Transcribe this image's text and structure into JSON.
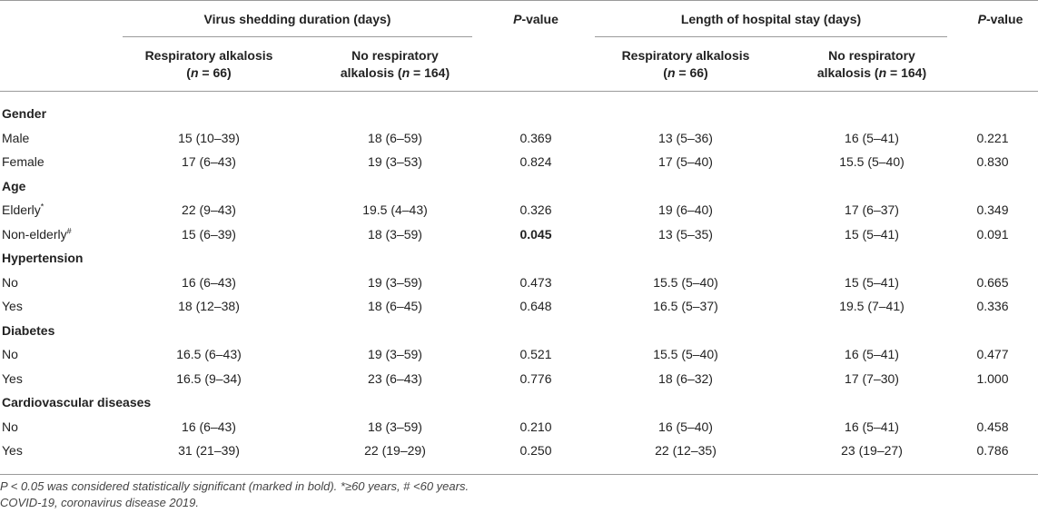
{
  "header": {
    "group1": "Virus shedding duration (days)",
    "group2": "Length of hospital stay (days)",
    "pvalue_p": "P",
    "pvalue_rest": "-value",
    "col_ra_line1": "Respiratory alkalosis",
    "col_ra_n_pre": "(",
    "col_ra_n_var": "n",
    "col_ra_n_post": " = 66)",
    "col_nra_line1": "No respiratory",
    "col_nra_line2_pre": "alkalosis (",
    "col_nra_n_var": "n",
    "col_nra_n_post": " = 164)"
  },
  "groups": [
    {
      "name": "Gender",
      "rows": [
        {
          "label": "Male",
          "sup": "",
          "v1": "15 (10–39)",
          "v2": "18 (6–59)",
          "p1": "0.369",
          "h1": "13 (5–36)",
          "h2": "16 (5–41)",
          "p2": "0.221"
        },
        {
          "label": "Female",
          "sup": "",
          "v1": "17 (6–43)",
          "v2": "19 (3–53)",
          "p1": "0.824",
          "h1": "17 (5–40)",
          "h2": "15.5 (5–40)",
          "p2": "0.830"
        }
      ]
    },
    {
      "name": "Age",
      "rows": [
        {
          "label": "Elderly",
          "sup": "*",
          "v1": "22 (9–43)",
          "v2": "19.5 (4–43)",
          "p1": "0.326",
          "h1": "19 (6–40)",
          "h2": "17 (6–37)",
          "p2": "0.349"
        },
        {
          "label": "Non-elderly",
          "sup": "#",
          "v1": "15 (6–39)",
          "v2": "18 (3–59)",
          "p1": "0.045",
          "p1_bold": true,
          "h1": "13 (5–35)",
          "h2": "15 (5–41)",
          "p2": "0.091"
        }
      ]
    },
    {
      "name": "Hypertension",
      "rows": [
        {
          "label": "No",
          "sup": "",
          "v1": "16 (6–43)",
          "v2": "19 (3–59)",
          "p1": "0.473",
          "h1": "15.5 (5–40)",
          "h2": "15 (5–41)",
          "p2": "0.665"
        },
        {
          "label": "Yes",
          "sup": "",
          "v1": "18 (12–38)",
          "v2": "18 (6–45)",
          "p1": "0.648",
          "h1": "16.5 (5–37)",
          "h2": "19.5 (7–41)",
          "p2": "0.336"
        }
      ]
    },
    {
      "name": "Diabetes",
      "rows": [
        {
          "label": "No",
          "sup": "",
          "v1": "16.5 (6–43)",
          "v2": "19 (3–59)",
          "p1": "0.521",
          "h1": "15.5 (5–40)",
          "h2": "16 (5–41)",
          "p2": "0.477"
        },
        {
          "label": "Yes",
          "sup": "",
          "v1": "16.5 (9–34)",
          "v2": "23 (6–43)",
          "p1": "0.776",
          "h1": "18 (6–32)",
          "h2": "17 (7–30)",
          "p2": "1.000"
        }
      ]
    },
    {
      "name": "Cardiovascular diseases",
      "rows": [
        {
          "label": "No",
          "sup": "",
          "v1": "16 (6–43)",
          "v2": "18 (3–59)",
          "p1": "0.210",
          "h1": "16 (5–40)",
          "h2": "16 (5–41)",
          "p2": "0.458"
        },
        {
          "label": "Yes",
          "sup": "",
          "v1": "31 (21–39)",
          "v2": "22 (19–29)",
          "p1": "0.250",
          "h1": "22 (12–35)",
          "h2": "23 (19–27)",
          "p2": "0.786"
        }
      ]
    }
  ],
  "footnotes": {
    "line1": "P < 0.05 was considered statistically significant (marked in bold). *≥60 years, # <60 years.",
    "line2": "COVID-19, coronavirus disease 2019."
  }
}
